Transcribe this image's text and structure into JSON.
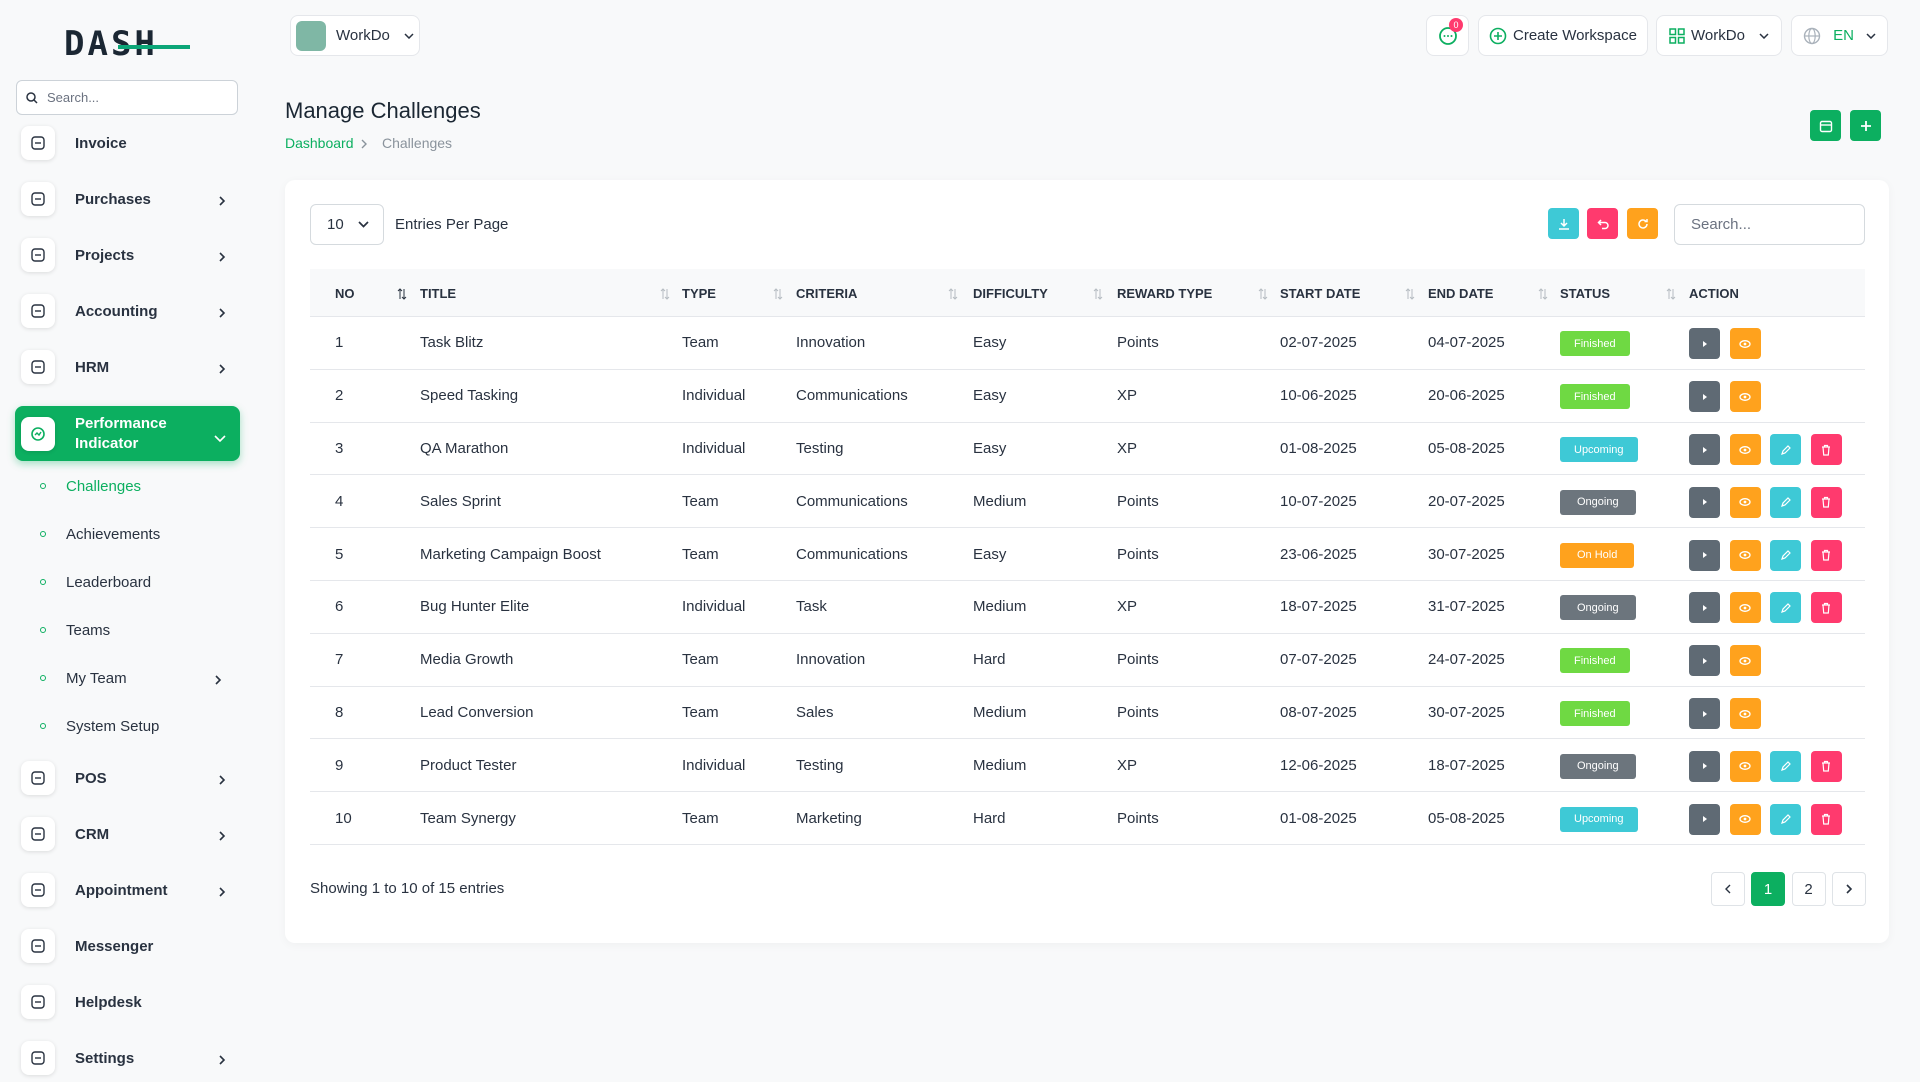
{
  "header": {
    "logo": "DASH",
    "workspace": "WorkDo",
    "notification_count": 0,
    "create_workspace": "Create Workspace",
    "user": "WorkDo",
    "language": "EN"
  },
  "sidebar": {
    "search_placeholder": "Search...",
    "items": [
      {
        "label": "Invoice",
        "has_submenu": false
      },
      {
        "label": "Purchases",
        "has_submenu": true
      },
      {
        "label": "Projects",
        "has_submenu": true
      },
      {
        "label": "Accounting",
        "has_submenu": true
      },
      {
        "label": "HRM",
        "has_submenu": true
      },
      {
        "label": "Performance Indicator",
        "has_submenu": true,
        "active": true,
        "children": [
          {
            "label": "Challenges",
            "active": true
          },
          {
            "label": "Achievements"
          },
          {
            "label": "Leaderboard"
          },
          {
            "label": "Teams"
          },
          {
            "label": "My Team",
            "has_submenu": true
          },
          {
            "label": "System Setup"
          }
        ]
      },
      {
        "label": "POS",
        "has_submenu": true
      },
      {
        "label": "CRM",
        "has_submenu": true
      },
      {
        "label": "Appointment",
        "has_submenu": true
      },
      {
        "label": "Messenger",
        "has_submenu": false
      },
      {
        "label": "Helpdesk",
        "has_submenu": false
      },
      {
        "label": "Settings",
        "has_submenu": true
      }
    ]
  },
  "page": {
    "title": "Manage Challenges",
    "breadcrumb": [
      "Dashboard",
      "Challenges"
    ]
  },
  "table": {
    "page_size": 10,
    "entries_label": "Entries Per Page",
    "search_placeholder": "Search...",
    "columns": [
      {
        "label": "NO",
        "sortable": true
      },
      {
        "label": "TITLE",
        "sortable": true
      },
      {
        "label": "TYPE",
        "sortable": true
      },
      {
        "label": "CRITERIA",
        "sortable": true
      },
      {
        "label": "DIFFICULTY",
        "sortable": true
      },
      {
        "label": "REWARD TYPE",
        "sortable": true
      },
      {
        "label": "START DATE",
        "sortable": true
      },
      {
        "label": "END DATE",
        "sortable": true
      },
      {
        "label": "STATUS",
        "sortable": true
      },
      {
        "label": "ACTION",
        "sortable": false
      }
    ],
    "rows": [
      {
        "cells": [
          1,
          "Task Blitz",
          "Team",
          "Innovation",
          "Easy",
          "Points",
          "02-07-2025",
          "04-07-2025"
        ],
        "status": "Finished",
        "status_color": "#6fd943",
        "editable": false
      },
      {
        "cells": [
          2,
          "Speed Tasking",
          "Individual",
          "Communications",
          "Easy",
          "XP",
          "10-06-2025",
          "20-06-2025"
        ],
        "status": "Finished",
        "status_color": "#6fd943",
        "editable": false
      },
      {
        "cells": [
          3,
          "QA Marathon",
          "Individual",
          "Testing",
          "Easy",
          "XP",
          "01-08-2025",
          "05-08-2025"
        ],
        "status": "Upcoming",
        "status_color": "#3ec9d6",
        "editable": true
      },
      {
        "cells": [
          4,
          "Sales Sprint",
          "Team",
          "Communications",
          "Medium",
          "Points",
          "10-07-2025",
          "20-07-2025"
        ],
        "status": "Ongoing",
        "status_color": "#6c757d",
        "editable": true
      },
      {
        "cells": [
          5,
          "Marketing Campaign Boost",
          "Team",
          "Communications",
          "Easy",
          "Points",
          "23-06-2025",
          "30-07-2025"
        ],
        "status": "On Hold",
        "status_color": "#ffa21d",
        "editable": true
      },
      {
        "cells": [
          6,
          "Bug Hunter Elite",
          "Individual",
          "Task",
          "Medium",
          "XP",
          "18-07-2025",
          "31-07-2025"
        ],
        "status": "Ongoing",
        "status_color": "#6c757d",
        "editable": true
      },
      {
        "cells": [
          7,
          "Media Growth",
          "Team",
          "Innovation",
          "Hard",
          "Points",
          "07-07-2025",
          "24-07-2025"
        ],
        "status": "Finished",
        "status_color": "#6fd943",
        "editable": false
      },
      {
        "cells": [
          8,
          "Lead Conversion",
          "Team",
          "Sales",
          "Medium",
          "Points",
          "08-07-2025",
          "30-07-2025"
        ],
        "status": "Finished",
        "status_color": "#6fd943",
        "editable": false
      },
      {
        "cells": [
          9,
          "Product Tester",
          "Individual",
          "Testing",
          "Medium",
          "XP",
          "12-06-2025",
          "18-07-2025"
        ],
        "status": "Ongoing",
        "status_color": "#6c757d",
        "editable": true
      },
      {
        "cells": [
          10,
          "Team Synergy",
          "Team",
          "Marketing",
          "Hard",
          "Points",
          "01-08-2025",
          "05-08-2025"
        ],
        "status": "Upcoming",
        "status_color": "#3ec9d6",
        "editable": true
      }
    ],
    "summary": "Showing 1 to 10 of 15 entries",
    "pages": [
      1,
      2
    ],
    "current_page": 1
  }
}
